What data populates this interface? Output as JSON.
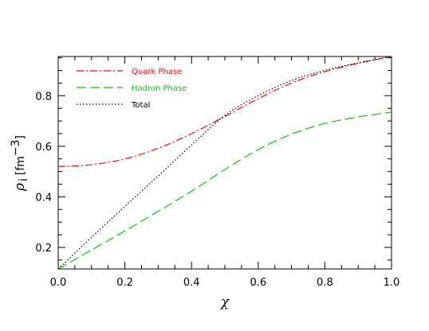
{
  "chart_data": {
    "type": "line",
    "xlabel": "χ",
    "ylabel": {
      "symbol": "ρ",
      "subscript": "i",
      "unit_open": "[fm",
      "unit_exp": "−3",
      "unit_close": "]"
    },
    "xlim": [
      0.0,
      1.0
    ],
    "ylim": [
      0.115,
      0.955
    ],
    "xticks": [
      0.0,
      0.2,
      0.4,
      0.6,
      0.8,
      1.0
    ],
    "xtick_labels": [
      "0.0",
      "0.2",
      "0.4",
      "0.6",
      "0.8",
      "1.0"
    ],
    "yticks": [
      0.2,
      0.4,
      0.6,
      0.8
    ],
    "ytick_labels": [
      "0.2",
      "0.4",
      "0.6",
      "0.8"
    ],
    "grid": false,
    "legend_position": "top-left",
    "series": [
      {
        "name": "Quark Phase",
        "color": "#ff0000",
        "dash": "dash-dot",
        "x": [
          0.0,
          0.1,
          0.2,
          0.3,
          0.4,
          0.5,
          0.6,
          0.7,
          0.8,
          0.9,
          1.0
        ],
        "y": [
          0.52,
          0.527,
          0.55,
          0.592,
          0.65,
          0.718,
          0.788,
          0.85,
          0.895,
          0.928,
          0.955
        ]
      },
      {
        "name": "Hadron Phase",
        "color": "#00cc00",
        "dash": "long-dash",
        "x": [
          0.0,
          0.1,
          0.2,
          0.3,
          0.4,
          0.5,
          0.6,
          0.7,
          0.8,
          0.9,
          1.0
        ],
        "y": [
          0.115,
          0.19,
          0.265,
          0.343,
          0.422,
          0.508,
          0.587,
          0.648,
          0.69,
          0.716,
          0.735
        ]
      },
      {
        "name": "Total",
        "color": "#000000",
        "dash": "dotted",
        "x": [
          0.0,
          0.1,
          0.2,
          0.3,
          0.4,
          0.5,
          0.6,
          0.7,
          0.8,
          0.9,
          1.0
        ],
        "y": [
          0.115,
          0.24,
          0.362,
          0.483,
          0.605,
          0.722,
          0.8,
          0.86,
          0.9,
          0.93,
          0.955
        ]
      }
    ]
  }
}
